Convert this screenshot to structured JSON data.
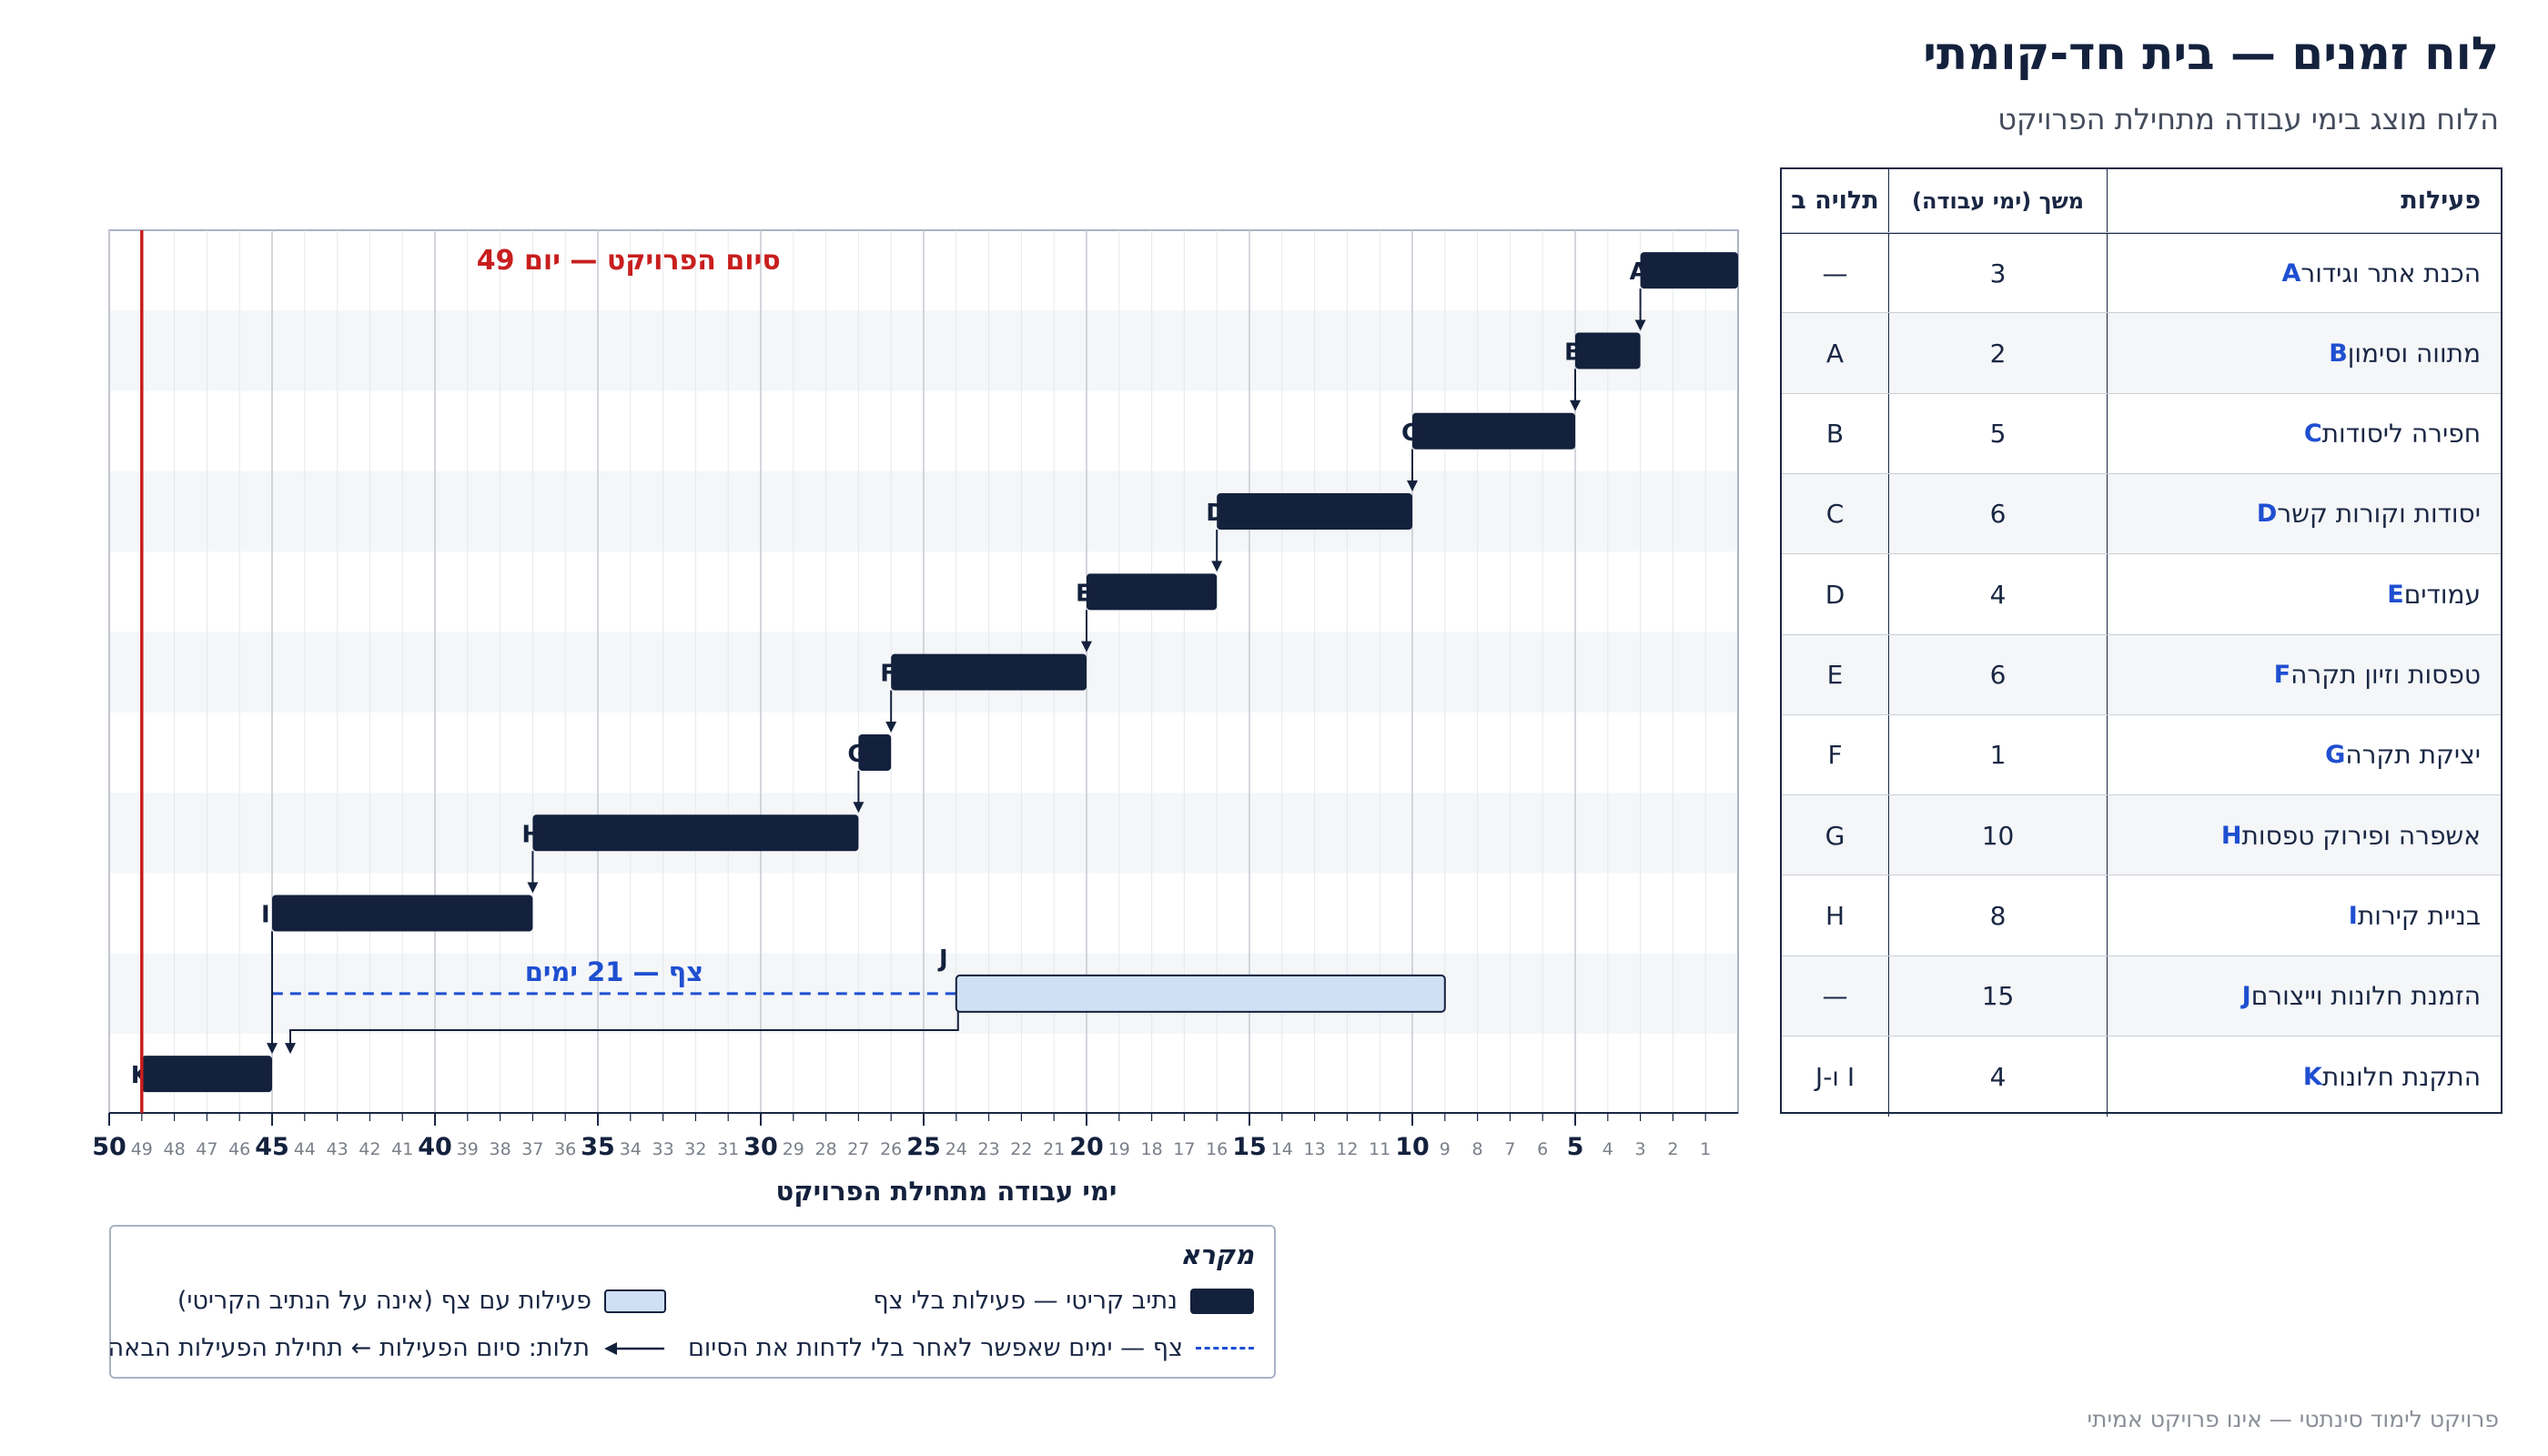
{
  "header": {
    "title": "לוח זמנים — בית חד-קומתי",
    "subtitle": "הלוח מוצג בימי עבודה מתחילת הפרויקט"
  },
  "footer": "פרויקט לימוד סינתטי — אינו פרויקט אמיתי",
  "table": {
    "headers": {
      "activity": "פעילות",
      "duration": "משך (ימי עבודה)",
      "depends": "תלויה ב"
    },
    "rows": [
      {
        "code": "A",
        "name": "הכנת אתר וגידור",
        "duration": "3",
        "depends": "—"
      },
      {
        "code": "B",
        "name": "מתווה וסימון",
        "duration": "2",
        "depends": "A"
      },
      {
        "code": "C",
        "name": "חפירה ליסודות",
        "duration": "5",
        "depends": "B"
      },
      {
        "code": "D",
        "name": "יסודות וקורות קשר",
        "duration": "6",
        "depends": "C"
      },
      {
        "code": "E",
        "name": "עמודים",
        "duration": "4",
        "depends": "D"
      },
      {
        "code": "F",
        "name": "טפסות וזיון תקרה",
        "duration": "6",
        "depends": "E"
      },
      {
        "code": "G",
        "name": "יציקת תקרה",
        "duration": "1",
        "depends": "F"
      },
      {
        "code": "H",
        "name": "אשפרה ופירוק טפסות",
        "duration": "10",
        "depends": "G"
      },
      {
        "code": "I",
        "name": "בניית קירות",
        "duration": "8",
        "depends": "H"
      },
      {
        "code": "J",
        "name": "הזמנת חלונות וייצורם",
        "duration": "15",
        "depends": "—"
      },
      {
        "code": "K",
        "name": "התקנת חלונות",
        "duration": "4",
        "depends": "I ו-J"
      }
    ]
  },
  "chart_data": {
    "type": "gantt",
    "xlabel": "ימי עבודה מתחילת הפרויקט",
    "xlim": [
      0,
      50
    ],
    "x_direction": "right-to-left",
    "major_ticks": [
      5,
      10,
      15,
      20,
      25,
      30,
      35,
      40,
      45,
      50
    ],
    "tasks": [
      {
        "code": "A",
        "start": 0,
        "end": 3,
        "critical": true,
        "depends": []
      },
      {
        "code": "B",
        "start": 3,
        "end": 5,
        "critical": true,
        "depends": [
          "A"
        ]
      },
      {
        "code": "C",
        "start": 5,
        "end": 10,
        "critical": true,
        "depends": [
          "B"
        ]
      },
      {
        "code": "D",
        "start": 10,
        "end": 16,
        "critical": true,
        "depends": [
          "C"
        ]
      },
      {
        "code": "E",
        "start": 16,
        "end": 20,
        "critical": true,
        "depends": [
          "D"
        ]
      },
      {
        "code": "F",
        "start": 20,
        "end": 26,
        "critical": true,
        "depends": [
          "E"
        ]
      },
      {
        "code": "G",
        "start": 26,
        "end": 27,
        "critical": true,
        "depends": [
          "F"
        ]
      },
      {
        "code": "H",
        "start": 27,
        "end": 37,
        "critical": true,
        "depends": [
          "G"
        ]
      },
      {
        "code": "I",
        "start": 37,
        "end": 45,
        "critical": true,
        "depends": [
          "H"
        ]
      },
      {
        "code": "J",
        "start": 9,
        "end": 24,
        "critical": false,
        "depends": [],
        "float_end": 45
      },
      {
        "code": "K",
        "start": 45,
        "end": 49,
        "critical": true,
        "depends": [
          "I",
          "J"
        ]
      }
    ],
    "float_label": "צף — 21 ימים",
    "finish": {
      "day": 49,
      "label": "סיום הפרויקט — יום 49"
    },
    "colors": {
      "critical": "#14213d",
      "float_bar": "#cfe0f5",
      "float_line": "#1f4fd1",
      "finish_line": "#c81e1e"
    }
  },
  "legend": {
    "title": "מקרא",
    "critical": "נתיב קריטי — פעילות בלי צף",
    "float_activity": "פעילות עם צף (אינה על הנתיב הקריטי)",
    "float_line": "צף — ימים שאפשר לאחר בלי לדחות את הסיום",
    "dependency": "תלות: סיום הפעילות ← תחילת הפעילות הבאה"
  }
}
